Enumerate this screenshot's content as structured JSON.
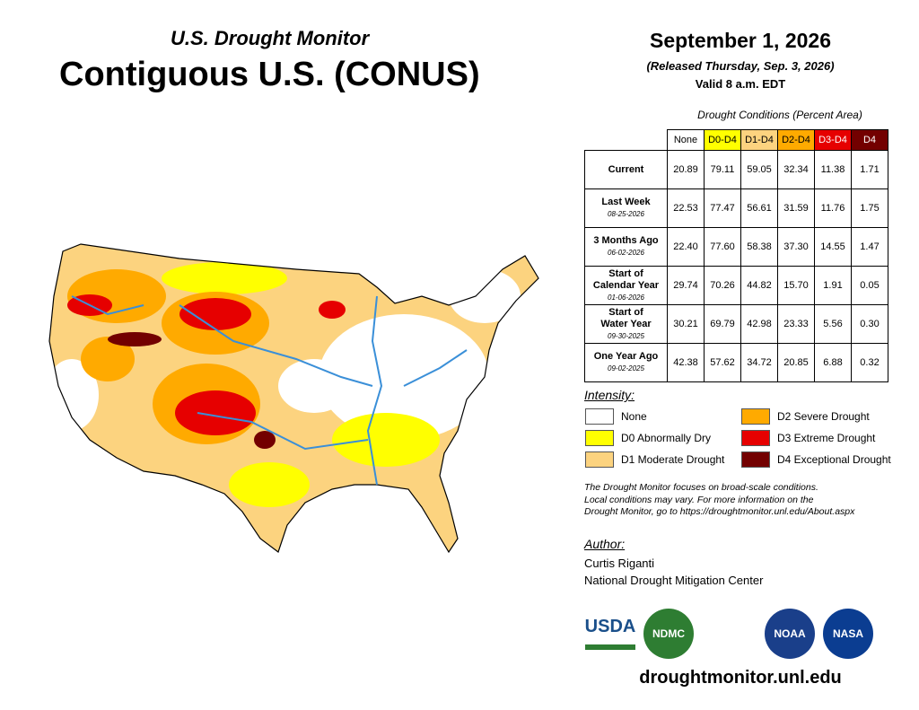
{
  "header": {
    "subtitle": "U.S. Drought Monitor",
    "title": "Contiguous U.S. (CONUS)"
  },
  "dateline": {
    "date": "September 1, 2026",
    "released": "(Released Thursday, Sep. 3, 2026)",
    "valid": "Valid 8 a.m. EDT"
  },
  "table": {
    "caption": "Drought Conditions (Percent Area)",
    "columns": [
      "None",
      "D0-D4",
      "D1-D4",
      "D2-D4",
      "D3-D4",
      "D4"
    ],
    "rows": [
      {
        "label": [
          "Current"
        ],
        "cells": [
          "20.89",
          "79.11",
          "59.05",
          "32.34",
          "11.38",
          "1.71"
        ]
      },
      {
        "label": [
          "Last Week"
        ],
        "date": "08-25-2026",
        "cells": [
          "22.53",
          "77.47",
          "56.61",
          "31.59",
          "11.76",
          "1.75"
        ]
      },
      {
        "label": [
          "3 Months Ago"
        ],
        "date": "06-02-2026",
        "cells": [
          "22.40",
          "77.60",
          "58.38",
          "37.30",
          "14.55",
          "1.47"
        ]
      },
      {
        "label": [
          "Start of",
          "Calendar Year"
        ],
        "date": "01-06-2026",
        "cells": [
          "29.74",
          "70.26",
          "44.82",
          "15.70",
          "1.91",
          "0.05"
        ]
      },
      {
        "label": [
          "Start of",
          "Water Year"
        ],
        "date": "09-30-2025",
        "cells": [
          "30.21",
          "69.79",
          "42.98",
          "23.33",
          "5.56",
          "0.30"
        ]
      },
      {
        "label": [
          "One Year Ago"
        ],
        "date": "09-02-2025",
        "cells": [
          "42.38",
          "57.62",
          "34.72",
          "20.85",
          "6.88",
          "0.32"
        ]
      }
    ]
  },
  "legend": {
    "title": "Intensity:",
    "items": [
      {
        "label": "None",
        "color": "#ffffff"
      },
      {
        "label": "D0 Abnormally Dry",
        "color": "#ffff00"
      },
      {
        "label": "D1 Moderate Drought",
        "color": "#fcd37f"
      },
      {
        "label": "D2 Severe Drought",
        "color": "#ffaa00"
      },
      {
        "label": "D3 Extreme Drought",
        "color": "#e60000"
      },
      {
        "label": "D4 Exceptional Drought",
        "color": "#730000"
      }
    ]
  },
  "note": [
    "The Drought Monitor focuses on broad-scale conditions.",
    "Local conditions may vary. For more information on the",
    "Drought Monitor, go to https://droughtmonitor.unl.edu/About.aspx"
  ],
  "author": {
    "title": "Author:",
    "lines": [
      "Curtis Riganti",
      "National Drought Mitigation Center"
    ]
  },
  "logos": [
    "USDA",
    "NDMC",
    "NOAA",
    "NASA"
  ],
  "footer": "droughtmonitor.unl.edu"
}
